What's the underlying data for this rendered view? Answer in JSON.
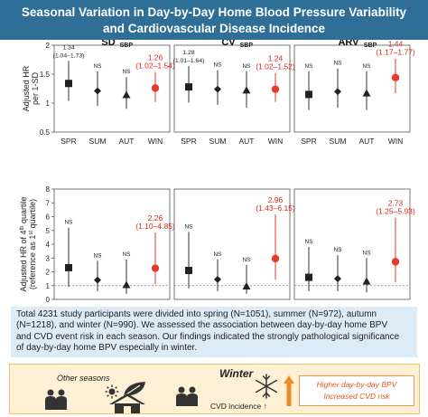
{
  "title": {
    "line1": "Seasonal Variation in Day-by-Day Home Blood Pressure Variability",
    "line2": "and Cardiovascular Disease Incidence"
  },
  "colors": {
    "header_bg": "#2f6e96",
    "winter_marker": "#e63a2c",
    "annotation_red": "#d6281b",
    "summary_bg": "#ddebf7",
    "bottom_bg": "#fdf0d4",
    "result_text": "#e05a1c"
  },
  "chart_data": [
    {
      "type": "scatter",
      "title": "SD",
      "title_sub": "SBP",
      "ylabel": "Adjusted HR per 1-SD",
      "ylim": [
        0.5,
        2.0
      ],
      "yticks": [
        "0.5",
        "1",
        "1.5",
        "2"
      ],
      "categories": [
        "SPR",
        "SUM",
        "AUT",
        "WIN"
      ],
      "markers": [
        "square",
        "diamond",
        "triangle",
        "circle"
      ],
      "values": [
        1.34,
        1.21,
        1.14,
        1.26
      ],
      "ci_low": [
        1.04,
        0.95,
        0.9,
        1.02
      ],
      "ci_high": [
        1.73,
        1.55,
        1.45,
        1.54
      ],
      "labels": [
        {
          "line1": "1.34",
          "line2": "(1.04–1.73)",
          "red": false
        },
        {
          "line1": "NS",
          "line2": "",
          "red": false
        },
        {
          "line1": "NS",
          "line2": "",
          "red": false
        },
        {
          "line1": "1.26",
          "line2": "(1.02–1.54)",
          "red": true
        }
      ]
    },
    {
      "type": "scatter",
      "title": "CV",
      "title_sub": "SBP",
      "ylim": [
        0.5,
        2.0
      ],
      "categories": [
        "SPR",
        "SUM",
        "AUT",
        "WIN"
      ],
      "markers": [
        "square",
        "diamond",
        "triangle",
        "circle"
      ],
      "values": [
        1.28,
        1.24,
        1.22,
        1.24
      ],
      "ci_low": [
        1.01,
        0.97,
        0.92,
        1.02
      ],
      "ci_high": [
        1.64,
        1.57,
        1.55,
        1.52
      ],
      "labels": [
        {
          "line1": "1.28",
          "line2": "(1.01–1.64)",
          "red": false
        },
        {
          "line1": "NS",
          "line2": "",
          "red": false
        },
        {
          "line1": "NS",
          "line2": "",
          "red": false
        },
        {
          "line1": "1.24",
          "line2": "(1.02–1.52)",
          "red": true
        }
      ]
    },
    {
      "type": "scatter",
      "title": "ARV",
      "title_sub": "SBP",
      "ylim": [
        0.5,
        2.0
      ],
      "categories": [
        "SPR",
        "SUM",
        "AUT",
        "WIN"
      ],
      "markers": [
        "square",
        "diamond",
        "triangle",
        "circle"
      ],
      "values": [
        1.15,
        1.2,
        1.17,
        1.44
      ],
      "ci_low": [
        0.88,
        0.92,
        0.88,
        1.17
      ],
      "ci_high": [
        1.55,
        1.6,
        1.55,
        1.77
      ],
      "labels": [
        {
          "line1": "NS",
          "line2": "",
          "red": false
        },
        {
          "line1": "NS",
          "line2": "",
          "red": false
        },
        {
          "line1": "NS",
          "line2": "",
          "red": false
        },
        {
          "line1": "1.44",
          "line2": "(1.17–1.77)",
          "red": true
        }
      ]
    },
    {
      "type": "scatter",
      "ylabel": "Adjusted HR of 4th quartile (reference as 1st quartile)",
      "ylim": [
        0,
        8
      ],
      "yticks": [
        "0",
        "1",
        "2",
        "3",
        "4",
        "5",
        "6",
        "7",
        "8"
      ],
      "categories": [
        "SPR",
        "SUM",
        "AUT",
        "WIN"
      ],
      "markers": [
        "square",
        "diamond",
        "triangle",
        "circle"
      ],
      "values": [
        2.3,
        1.4,
        1.05,
        2.26
      ],
      "ci_low": [
        0.9,
        0.6,
        0.4,
        1.1
      ],
      "ci_high": [
        5.2,
        2.8,
        2.9,
        4.85
      ],
      "labels": [
        {
          "line1": "NS",
          "line2": "",
          "red": false
        },
        {
          "line1": "NS",
          "line2": "",
          "red": false
        },
        {
          "line1": "NS",
          "line2": "",
          "red": false
        },
        {
          "line1": "2.26",
          "line2": "(1.10–4.85)",
          "red": true
        }
      ]
    },
    {
      "type": "scatter",
      "ylim": [
        0,
        8
      ],
      "categories": [
        "SPR",
        "SUM",
        "AUT",
        "WIN"
      ],
      "markers": [
        "square",
        "diamond",
        "triangle",
        "circle"
      ],
      "values": [
        2.1,
        1.45,
        0.95,
        2.96
      ],
      "ci_low": [
        0.8,
        0.6,
        0.4,
        1.43
      ],
      "ci_high": [
        4.9,
        2.9,
        2.5,
        6.15
      ],
      "labels": [
        {
          "line1": "NS",
          "line2": "",
          "red": false
        },
        {
          "line1": "NS",
          "line2": "",
          "red": false
        },
        {
          "line1": "NS",
          "line2": "",
          "red": false
        },
        {
          "line1": "2.96",
          "line2": "(1.43–6.15)",
          "red": true
        }
      ]
    },
    {
      "type": "scatter",
      "ylim": [
        0,
        8
      ],
      "categories": [
        "SPR",
        "SUM",
        "AUT",
        "WIN"
      ],
      "markers": [
        "square",
        "diamond",
        "triangle",
        "circle"
      ],
      "values": [
        1.6,
        1.5,
        1.3,
        2.73
      ],
      "ci_low": [
        0.6,
        0.6,
        0.5,
        1.25
      ],
      "ci_high": [
        3.8,
        3.2,
        3.0,
        5.93
      ],
      "labels": [
        {
          "line1": "NS",
          "line2": "",
          "red": false
        },
        {
          "line1": "NS",
          "line2": "",
          "red": false
        },
        {
          "line1": "NS",
          "line2": "",
          "red": false
        },
        {
          "line1": "2.73",
          "line2": "(1.25–5.93)",
          "red": true
        }
      ]
    }
  ],
  "summary": {
    "line1": "Total 4231 study participants were divided into spring (N=1051), summer (N=972), autumn",
    "line2": "(N=1218), and winter (N=990). We assessed the association between day-by-day home BPV",
    "line3": "and CVD event risk in each season. Our findings indicated the strongly pathological significance",
    "line4": "of day-by-day home BPV especially in winter."
  },
  "bottom": {
    "other_seasons": "Other seasons",
    "winter": "Winter",
    "cvd_incidence": "CVD incidence",
    "result_line1": "Higher day-by-day BPV",
    "result_line2": "Increased CVD risk"
  }
}
